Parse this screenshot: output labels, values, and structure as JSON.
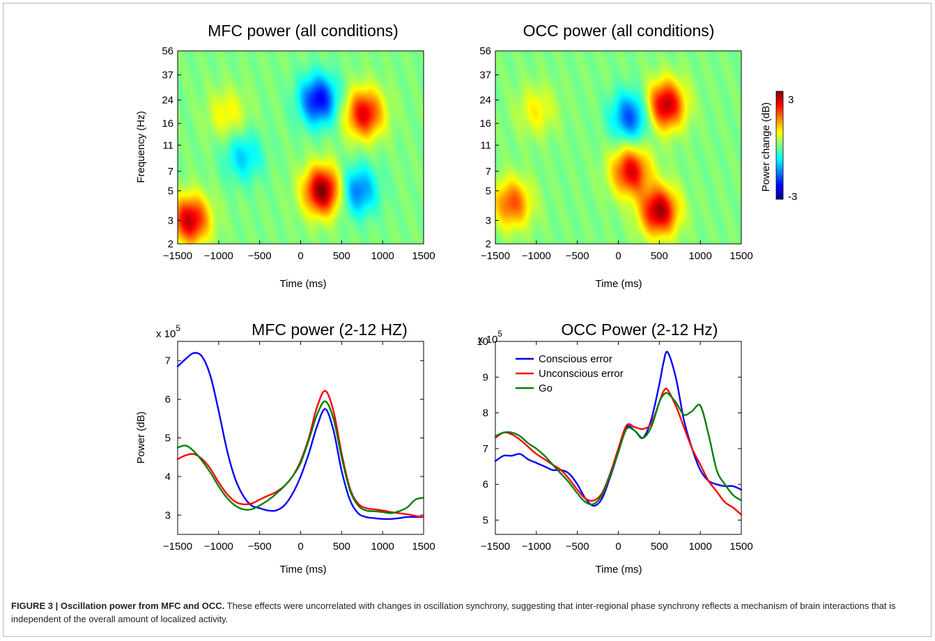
{
  "colors": {
    "conscious_error": "#0000ff",
    "unconscious_error": "#ff0000",
    "go": "#008000"
  },
  "caption": {
    "label": "FIGURE 3 | Oscillation power from MFC and OCC.",
    "text": "These effects were uncorrelated with changes in oscillation synchrony, suggesting that inter-regional phase synchrony reflects a mechanism of brain interactions that is independent of the overall amount of localized activity."
  },
  "chart_data": [
    {
      "type": "heatmap",
      "title": "MFC power (all conditions)",
      "xlabel": "Time (ms)",
      "ylabel": "Frequency (Hz)",
      "x_ticks": [
        "−1500",
        "−1000",
        "−500",
        "0",
        "500",
        "1000",
        "1500"
      ],
      "y_ticks": [
        "2",
        "3",
        "5",
        "7",
        "11",
        "16",
        "24",
        "37",
        "56"
      ],
      "xlim": [
        -1500,
        1500
      ],
      "y_scale": "log",
      "ylim": [
        2,
        56
      ],
      "blobs": [
        {
          "t": -1350,
          "f": 3,
          "value": 2.6
        },
        {
          "t": -900,
          "f": 19,
          "value": 0.8
        },
        {
          "t": 270,
          "f": 5,
          "value": 3.0
        },
        {
          "t": 220,
          "f": 24,
          "value": -2.3
        },
        {
          "t": 780,
          "f": 19,
          "value": 2.4
        },
        {
          "t": 700,
          "f": 5,
          "value": -1.6
        },
        {
          "t": -700,
          "f": 9,
          "value": -1.0
        }
      ]
    },
    {
      "type": "heatmap",
      "title": "OCC power (all conditions)",
      "xlabel": "Time (ms)",
      "ylabel": "",
      "x_ticks": [
        "−1500",
        "−1000",
        "−500",
        "0",
        "500",
        "1000",
        "1500"
      ],
      "y_ticks": [
        "2",
        "3",
        "5",
        "7",
        "11",
        "16",
        "24",
        "37",
        "56"
      ],
      "xlim": [
        -1500,
        1500
      ],
      "y_scale": "log",
      "ylim": [
        2,
        56
      ],
      "colorbar": {
        "label": "Power change (dB)",
        "min": -3,
        "max": 3,
        "tick_max": "3",
        "tick_min": "-3"
      },
      "blobs": [
        {
          "t": -1300,
          "f": 4,
          "value": 1.8
        },
        {
          "t": -1000,
          "f": 20,
          "value": 0.8
        },
        {
          "t": 500,
          "f": 3.5,
          "value": 2.8
        },
        {
          "t": 580,
          "f": 22,
          "value": 2.7
        },
        {
          "t": 150,
          "f": 7,
          "value": 2.4
        },
        {
          "t": 150,
          "f": 18,
          "value": -1.8
        }
      ]
    },
    {
      "type": "line",
      "title": "MFC power (2-12 HZ)",
      "xlabel": "Time (ms)",
      "ylabel": "Power (dB)",
      "y_multiplier": "x 10",
      "y_exponent": "5",
      "x_ticks": [
        "−1500",
        "−1000",
        "−500",
        "0",
        "500",
        "1000",
        "1500"
      ],
      "y_ticks": [
        "3",
        "4",
        "5",
        "6",
        "7"
      ],
      "xlim": [
        -1500,
        1500
      ],
      "ylim": [
        2.5,
        7.5
      ],
      "x": [
        -1500,
        -1400,
        -1300,
        -1200,
        -1100,
        -1000,
        -900,
        -800,
        -700,
        -600,
        -500,
        -400,
        -300,
        -200,
        -100,
        0,
        100,
        200,
        300,
        400,
        500,
        600,
        700,
        800,
        900,
        1000,
        1100,
        1200,
        1300,
        1400,
        1500
      ],
      "series": [
        {
          "values": [
            6.85,
            7.05,
            7.2,
            7.1,
            6.6,
            5.7,
            4.7,
            3.95,
            3.5,
            3.25,
            3.18,
            3.12,
            3.12,
            3.25,
            3.55,
            4.0,
            4.6,
            5.3,
            5.75,
            5.2,
            4.15,
            3.4,
            3.05,
            2.95,
            2.92,
            2.9,
            2.9,
            2.92,
            2.95,
            2.95,
            2.95
          ]
        },
        {
          "values": [
            4.45,
            4.55,
            4.58,
            4.45,
            4.2,
            3.85,
            3.55,
            3.35,
            3.28,
            3.3,
            3.4,
            3.5,
            3.6,
            3.75,
            4.0,
            4.4,
            5.0,
            5.8,
            6.22,
            5.7,
            4.6,
            3.7,
            3.3,
            3.18,
            3.15,
            3.12,
            3.08,
            3.05,
            3.02,
            2.98,
            2.95
          ]
        },
        {
          "values": [
            4.75,
            4.8,
            4.65,
            4.4,
            4.1,
            3.75,
            3.45,
            3.25,
            3.15,
            3.15,
            3.25,
            3.38,
            3.55,
            3.75,
            4.0,
            4.35,
            4.95,
            5.6,
            5.95,
            5.5,
            4.5,
            3.65,
            3.25,
            3.12,
            3.1,
            3.08,
            3.05,
            3.1,
            3.2,
            3.4,
            3.45
          ]
        }
      ]
    },
    {
      "type": "line",
      "title": "OCC Power (2-12 Hz)",
      "xlabel": "Time (ms)",
      "ylabel": "",
      "y_multiplier": "x 10",
      "y_exponent": "5",
      "x_ticks": [
        "−1500",
        "−1000",
        "−500",
        "0",
        "500",
        "1000",
        "1500"
      ],
      "y_ticks": [
        "5",
        "6",
        "7",
        "8",
        "9",
        "10"
      ],
      "xlim": [
        -1500,
        1500
      ],
      "ylim": [
        4.6,
        10.0
      ],
      "legend_position": "top-left",
      "x": [
        -1500,
        -1400,
        -1300,
        -1200,
        -1100,
        -1000,
        -900,
        -800,
        -700,
        -600,
        -500,
        -400,
        -300,
        -200,
        -100,
        0,
        100,
        200,
        300,
        400,
        500,
        550,
        600,
        700,
        800,
        900,
        1000,
        1100,
        1200,
        1300,
        1400,
        1500
      ],
      "series": [
        {
          "name": "Conscious error",
          "values": [
            6.65,
            6.8,
            6.8,
            6.85,
            6.7,
            6.6,
            6.5,
            6.4,
            6.4,
            6.3,
            6.0,
            5.6,
            5.4,
            5.6,
            6.2,
            6.9,
            7.6,
            7.5,
            7.3,
            7.8,
            8.8,
            9.4,
            9.7,
            9.0,
            7.8,
            7.0,
            6.4,
            6.1,
            6.0,
            5.95,
            5.95,
            5.85
          ]
        },
        {
          "name": "Unconscious error",
          "values": [
            7.3,
            7.45,
            7.4,
            7.25,
            7.05,
            6.85,
            6.7,
            6.55,
            6.4,
            6.15,
            5.85,
            5.6,
            5.55,
            5.75,
            6.3,
            7.0,
            7.65,
            7.6,
            7.55,
            7.7,
            8.3,
            8.6,
            8.65,
            8.2,
            7.6,
            7.0,
            6.55,
            6.1,
            5.8,
            5.5,
            5.35,
            5.15
          ]
        },
        {
          "name": "Go",
          "values": [
            7.35,
            7.45,
            7.45,
            7.35,
            7.15,
            7.0,
            6.8,
            6.55,
            6.3,
            6.05,
            5.75,
            5.5,
            5.45,
            5.7,
            6.25,
            6.9,
            7.55,
            7.5,
            7.3,
            7.6,
            8.3,
            8.5,
            8.55,
            8.3,
            7.95,
            8.05,
            8.2,
            7.4,
            6.4,
            6.0,
            5.7,
            5.55
          ]
        }
      ]
    }
  ]
}
